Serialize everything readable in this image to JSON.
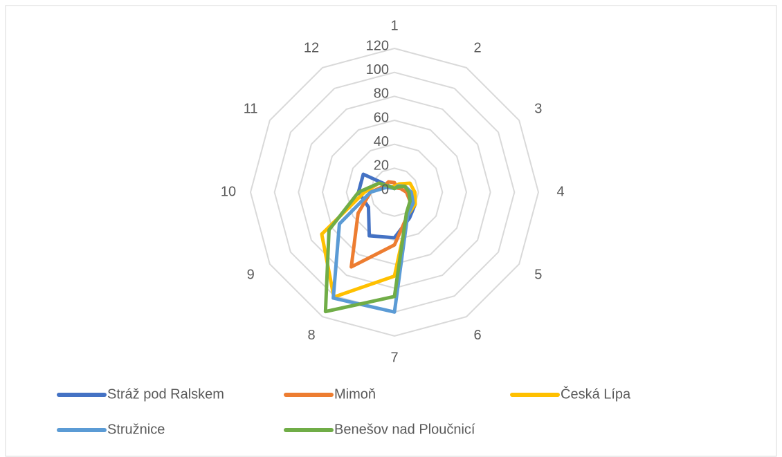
{
  "chart_data": {
    "type": "radar",
    "categories": [
      "1",
      "2",
      "3",
      "4",
      "5",
      "6",
      "7",
      "8",
      "9",
      "10",
      "11",
      "12"
    ],
    "ylim": [
      0,
      120
    ],
    "yticks": [
      0,
      20,
      40,
      60,
      80,
      100,
      120
    ],
    "grid": true,
    "legend": "bottom",
    "series": [
      {
        "name": "Stráž pod Ralskem",
        "color": "#4472c4",
        "values": [
          5,
          5,
          10,
          12,
          20,
          25,
          38,
          42,
          25,
          30,
          30,
          5
        ]
      },
      {
        "name": "Mimoň",
        "color": "#ed7d31",
        "values": [
          8,
          4,
          6,
          10,
          15,
          22,
          44,
          72,
          35,
          20,
          10,
          10
        ]
      },
      {
        "name": "Česká Lípa",
        "color": "#ffc000",
        "values": [
          5,
          8,
          15,
          17,
          20,
          22,
          70,
          101,
          70,
          25,
          15,
          5
        ]
      },
      {
        "name": "Stružnice",
        "color": "#5b9bd5",
        "values": [
          3,
          6,
          10,
          14,
          18,
          22,
          100,
          102,
          53,
          20,
          8,
          4
        ]
      },
      {
        "name": "Benešov nad Ploučnicí",
        "color": "#70ad47",
        "values": [
          3,
          5,
          10,
          12,
          15,
          20,
          87,
          115,
          63,
          30,
          15,
          5
        ]
      }
    ]
  }
}
